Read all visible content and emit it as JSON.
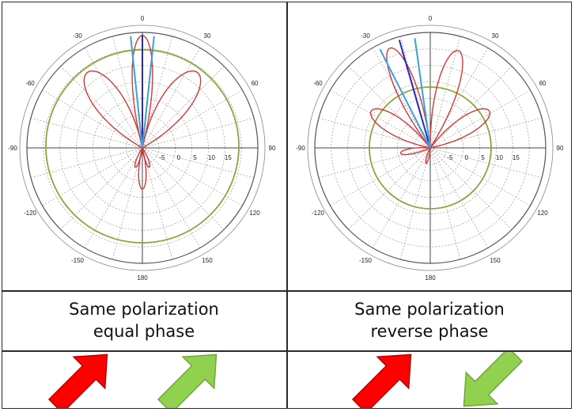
{
  "panels": [
    {
      "caption_line1": "Same polarization",
      "caption_line2": "equal phase",
      "angle_labels": [
        "0",
        "-30",
        "-60",
        "-90",
        "-120",
        "-150",
        "180",
        "150",
        "120",
        "90",
        "60",
        "30"
      ],
      "radial_labels": [
        "-5",
        "0",
        "5",
        "10",
        "15"
      ],
      "arrows": [
        {
          "name": "red-arrow",
          "color": "#ff0000",
          "direction": "up-right"
        },
        {
          "name": "green-arrow",
          "color": "#92d050",
          "direction": "up-right"
        }
      ]
    },
    {
      "caption_line1": "Same polarization",
      "caption_line2": "reverse phase",
      "angle_labels": [
        "0",
        "-30",
        "-60",
        "-90",
        "-120",
        "-150",
        "180",
        "150",
        "120",
        "90",
        "60",
        "30"
      ],
      "radial_labels": [
        "-5",
        "0",
        "5",
        "10",
        "15"
      ],
      "arrows": [
        {
          "name": "red-arrow",
          "color": "#ff0000",
          "direction": "up-right"
        },
        {
          "name": "green-arrow",
          "color": "#92d050",
          "direction": "down-left"
        }
      ]
    }
  ],
  "colors": {
    "pattern": "#d23a3a",
    "beam_center": "#2a2ab8",
    "beam_edges": "#3aa0d8",
    "reference_circle": "#8aa83a",
    "grid": "#9a9a9a"
  }
}
